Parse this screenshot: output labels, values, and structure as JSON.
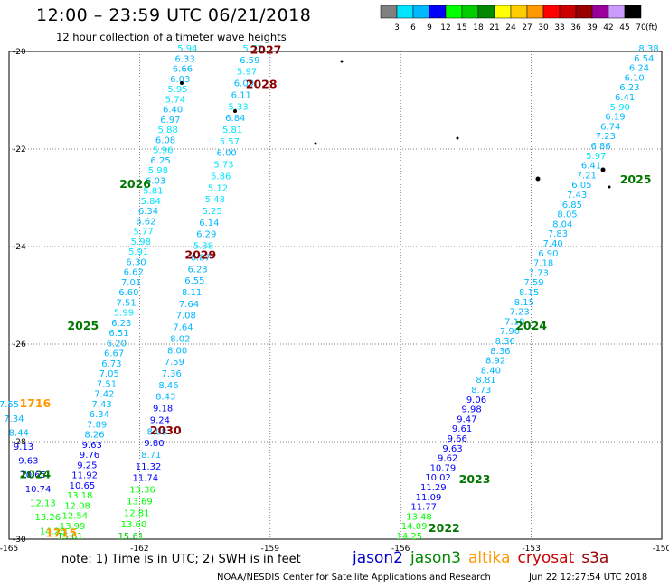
{
  "header": {
    "title": "12:00 – 23:59 UTC 06/21/2018",
    "subtitle": "12 hour collection of altimeter wave heights"
  },
  "colorbar": {
    "unit_label": "(ft)",
    "ticks": [
      "3",
      "6",
      "9",
      "12",
      "15",
      "18",
      "21",
      "24",
      "27",
      "30",
      "33",
      "36",
      "39",
      "42",
      "45",
      "70"
    ],
    "colors": [
      "#808080",
      "#00e5ff",
      "#00b8ff",
      "#0000ff",
      "#00ff00",
      "#00cc00",
      "#008800",
      "#ffff00",
      "#ffcc00",
      "#ff9900",
      "#ff0000",
      "#cc0000",
      "#990000",
      "#990099",
      "#cc99ff",
      "#000000"
    ]
  },
  "axes": {
    "lon_ticks": [
      "-165",
      "-162",
      "-159",
      "-156",
      "-153",
      "-150"
    ],
    "lat_ticks": [
      "-20",
      "-22",
      "-24",
      "-26",
      "-28",
      "-30"
    ],
    "lon_range": [
      -165,
      -150
    ],
    "lat_range": [
      -30,
      -20
    ]
  },
  "passes": [
    {
      "label": "2027",
      "color": "#8b0000",
      "lon": -159.1,
      "lat": -20.05
    },
    {
      "label": "2028",
      "color": "#8b0000",
      "lon": -159.2,
      "lat": -20.75
    },
    {
      "label": "2026",
      "color": "#007700",
      "lon": -162.1,
      "lat": -22.8
    },
    {
      "label": "2029",
      "color": "#8b0000",
      "lon": -160.6,
      "lat": -24.25
    },
    {
      "label": "2025",
      "color": "#007700",
      "lon": -163.3,
      "lat": -25.7
    },
    {
      "label": "1716",
      "color": "#ff9900",
      "lon": -164.4,
      "lat": -27.3
    },
    {
      "label": "2030",
      "color": "#8b0000",
      "lon": -161.4,
      "lat": -27.85
    },
    {
      "label": "2024",
      "color": "#007700",
      "lon": -164.4,
      "lat": -28.75
    },
    {
      "label": "1715",
      "color": "#ff9900",
      "lon": -163.8,
      "lat": -29.95
    },
    {
      "label": "2025",
      "color": "#007700",
      "lon": -150.6,
      "lat": -22.7
    },
    {
      "label": "2024",
      "color": "#007700",
      "lon": -153.0,
      "lat": -25.7
    },
    {
      "label": "2023",
      "color": "#007700",
      "lon": -154.3,
      "lat": -28.85
    },
    {
      "label": "2022",
      "color": "#007700",
      "lon": -155.0,
      "lat": -29.85
    }
  ],
  "tracks": [
    {
      "name": "track-a",
      "x0": -160.9,
      "y0": -20.0,
      "x1": -163.6,
      "y1": -30.0,
      "values": [
        "5.94",
        "6.33",
        "6.66",
        "6.03",
        "5.95",
        "5.74",
        "6.40",
        "6.97",
        "5.88",
        "6.08",
        "5.96",
        "6.25",
        "5.98",
        "6.03",
        "5.81",
        "5.84",
        "6.34",
        "6.62",
        "5.77",
        "5.98",
        "5.91",
        "6.30",
        "6.62",
        "7.01",
        "6.60",
        "7.51",
        "5.99",
        "6.23",
        "6.51",
        "6.20",
        "6.67",
        "6.73",
        "7.05",
        "7.51",
        "7.42",
        "7.43",
        "6.34",
        "7.89",
        "8.26",
        "9.63",
        "9.76",
        "9.25",
        "11.92",
        "10.65",
        "13.18",
        "12.08",
        "12.54",
        "13.99",
        "15.61"
      ]
    },
    {
      "name": "track-b",
      "x0": -159.4,
      "y0": -20.0,
      "x1": -162.2,
      "y1": -30.0,
      "values": [
        "5.72",
        "6.59",
        "5.97",
        "6.09",
        "6.11",
        "5.33",
        "6.84",
        "5.81",
        "5.57",
        "6.00",
        "5.73",
        "5.86",
        "5.12",
        "5.48",
        "5.25",
        "6.14",
        "6.29",
        "5.38",
        "6.87",
        "6.23",
        "6.55",
        "8.11",
        "7.64",
        "7.08",
        "7.64",
        "8.02",
        "8.00",
        "7.59",
        "7.36",
        "8.46",
        "8.43",
        "9.18",
        "9.24",
        "8.08",
        "9.80",
        "8.71",
        "11.32",
        "11.74",
        "13.36",
        "13.69",
        "12.81",
        "13.60",
        "15.61"
      ]
    },
    {
      "name": "track-c",
      "x0": -150.3,
      "y0": -20.0,
      "x1": -155.8,
      "y1": -30.0,
      "values": [
        "8.38",
        "6.54",
        "6.24",
        "6.10",
        "6.23",
        "6.41",
        "5.90",
        "6.19",
        "6.74",
        "7.23",
        "6.86",
        "5.97",
        "6.41",
        "7.21",
        "6.05",
        "7.43",
        "6.85",
        "8.05",
        "8.04",
        "7.83",
        "7.40",
        "6.90",
        "7.18",
        "7.73",
        "7.59",
        "8.15",
        "8.15",
        "7.23",
        "7.18",
        "7.90",
        "8.36",
        "8.36",
        "8.92",
        "8.40",
        "8.81",
        "8.73",
        "9.06",
        "9.98",
        "9.47",
        "9.61",
        "9.66",
        "9.63",
        "9.62",
        "10.79",
        "10.02",
        "11.29",
        "11.09",
        "11.77",
        "13.48",
        "14.09",
        "14.25"
      ]
    },
    {
      "name": "track-d",
      "x0": -165.0,
      "y0": -27.3,
      "x1": -164.0,
      "y1": -29.9,
      "values": [
        "7.55",
        "7.34",
        "8.44",
        "9.13",
        "9.63",
        "10.65",
        "10.74",
        "12.13",
        "13.26",
        "14.26"
      ]
    }
  ],
  "footer": {
    "note": "note: 1) Time is in UTC; 2) SWH is in feet",
    "credit": "NOAA/NESDIS Center for Satellite Applications and Research",
    "date": "Jun 22 12:27:54 UTC 2018"
  },
  "legend": [
    {
      "label": "jason2",
      "color": "#0000cc"
    },
    {
      "label": "jason3",
      "color": "#008800"
    },
    {
      "label": "altika",
      "color": "#ff9900"
    },
    {
      "label": "cryosat",
      "color": "#cc0000"
    },
    {
      "label": "s3a",
      "color": "#990000"
    }
  ]
}
